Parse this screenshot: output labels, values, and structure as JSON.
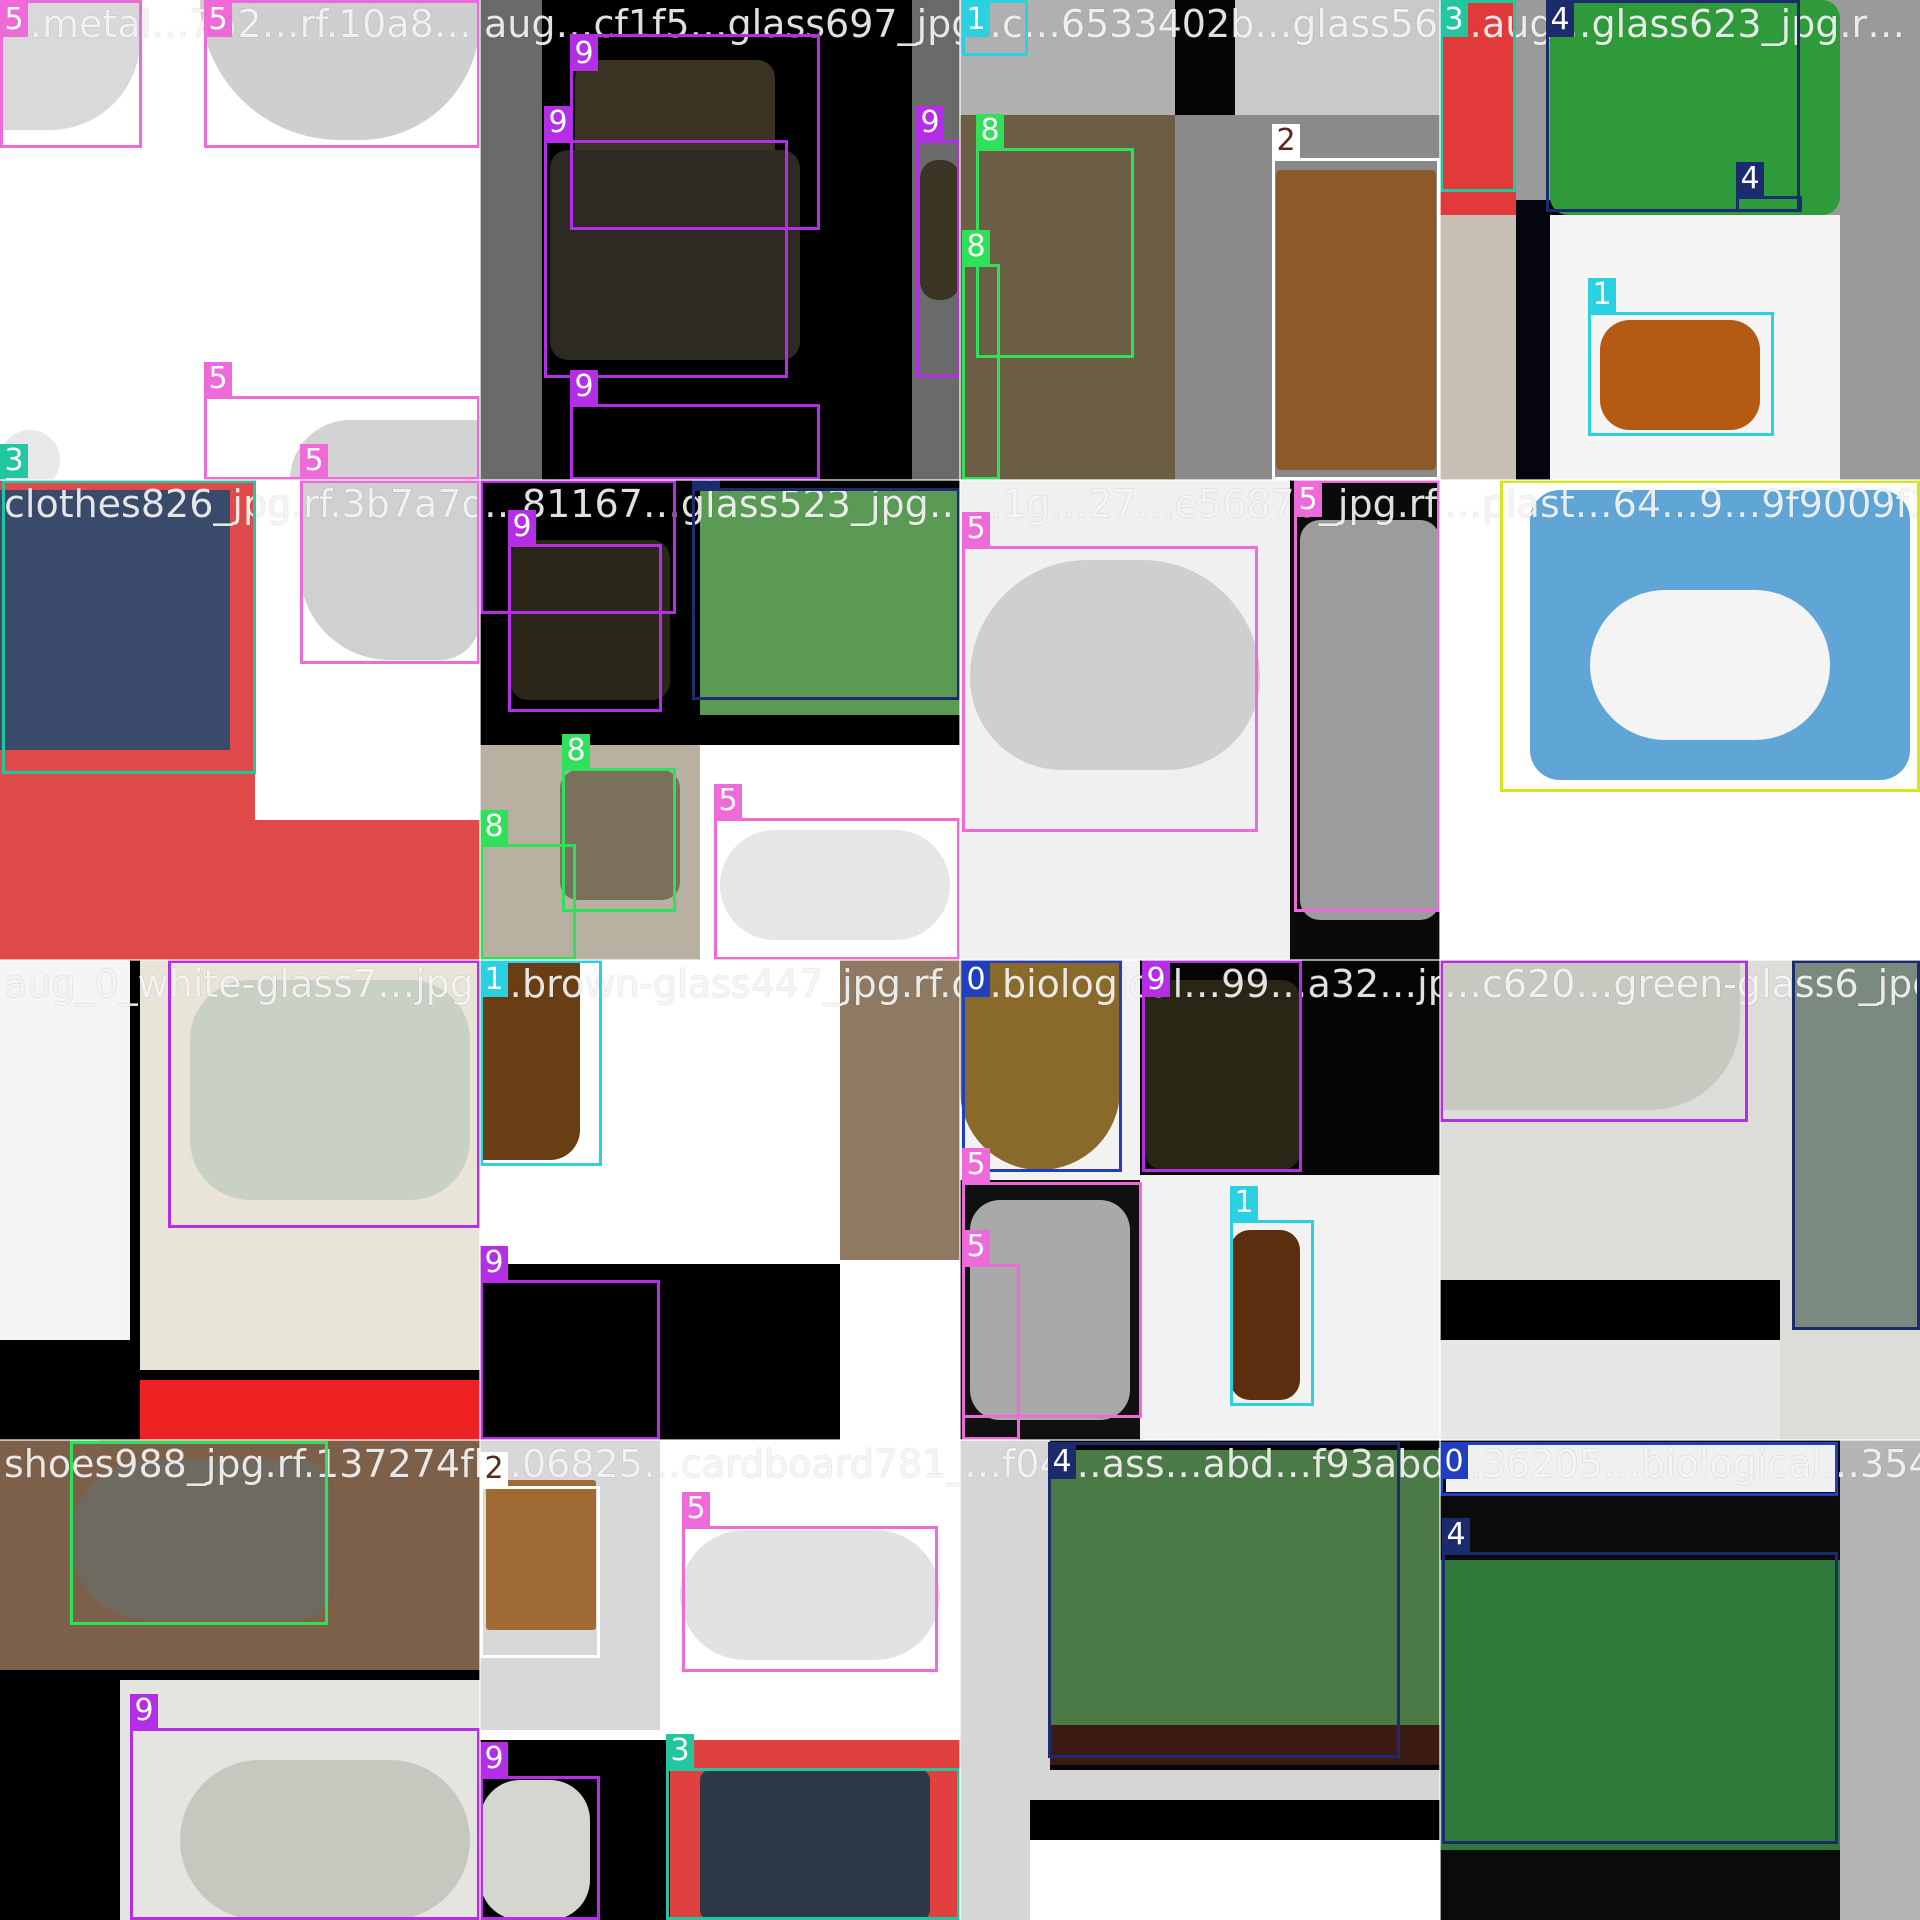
{
  "image": {
    "kind": "yolo-training-batch-mosaic",
    "grid": "4x4"
  },
  "class_colors": {
    "0": "#1f3fbf",
    "1": "#2bd1e0",
    "2": "#5a2a1e",
    "3": "#22c7a0",
    "4": "#1c2a6e",
    "5": "#ee6ad8",
    "7": "#d5e61e",
    "8": "#2fe05a",
    "9": "#b32ee6"
  },
  "tiles": [
    {
      "title": "…metal…752…rf.10a8…",
      "boxes": [
        {
          "cls": "5"
        },
        {
          "cls": "5"
        },
        {
          "cls": "5"
        },
        {
          "cls": "5"
        },
        {
          "cls": "3"
        }
      ]
    },
    {
      "title": "aug…cf1f5…glass697_jpg.rf…",
      "boxes": [
        {
          "cls": "9"
        },
        {
          "cls": "9"
        },
        {
          "cls": "9"
        },
        {
          "cls": "9"
        }
      ]
    },
    {
      "title": "…c…6533402b…glass567_jpg…",
      "boxes": [
        {
          "cls": "1"
        },
        {
          "cls": "8"
        },
        {
          "cls": "8"
        },
        {
          "cls": "2"
        }
      ]
    },
    {
      "title": "…aug…glass623_jpg.r…",
      "boxes": [
        {
          "cls": "3"
        },
        {
          "cls": "4"
        },
        {
          "cls": "4"
        },
        {
          "cls": "1"
        }
      ]
    },
    {
      "title": "clothes826_jpg.rf.3b7a7d10…",
      "boxes": [
        {
          "cls": "3"
        },
        {
          "cls": "5"
        }
      ]
    },
    {
      "title": "…81167…glass523_jpg…",
      "boxes": [
        {
          "cls": "9"
        },
        {
          "cls": "9"
        },
        {
          "cls": "4"
        },
        {
          "cls": "8"
        },
        {
          "cls": "8"
        },
        {
          "cls": "5"
        }
      ]
    },
    {
      "title": "…1g…27…e56870_jpg.rf.b065…",
      "boxes": [
        {
          "cls": "5"
        },
        {
          "cls": "5"
        }
      ]
    },
    {
      "title": "…plast…64…9…9f9009f14",
      "boxes": [
        {
          "cls": "7"
        }
      ]
    },
    {
      "title": "aug_0_white-glass7…jpg…",
      "boxes": [
        {
          "cls": "9"
        }
      ]
    },
    {
      "title": "…brown-glass447_jpg.rf.d3b04…",
      "boxes": [
        {
          "cls": "1"
        },
        {
          "cls": "9"
        }
      ]
    },
    {
      "title": "…biological…99…a32…jpg.rf.65b51ff2…",
      "boxes": [
        {
          "cls": "0"
        },
        {
          "cls": "9"
        },
        {
          "cls": "5"
        },
        {
          "cls": "5"
        },
        {
          "cls": "1"
        }
      ]
    },
    {
      "title": "…c620…green-glass6_jpg.rf.8…",
      "boxes": [
        {
          "cls": "9"
        },
        {
          "cls": "4"
        }
      ]
    },
    {
      "title": "shoes988_jpg.rf.137274fb94…",
      "boxes": [
        {
          "cls": "8"
        },
        {
          "cls": "9"
        }
      ]
    },
    {
      "title": "…06825…cardboard781_jpg.rf.ef…",
      "boxes": [
        {
          "cls": "2"
        },
        {
          "cls": "5"
        },
        {
          "cls": "9"
        },
        {
          "cls": "3"
        }
      ]
    },
    {
      "title": "…f04…ass…abd…f93abd0431…",
      "boxes": [
        {
          "cls": "4"
        }
      ]
    },
    {
      "title": "…36205…biological…354_jpg.rf.e…",
      "boxes": [
        {
          "cls": "0"
        },
        {
          "cls": "4"
        }
      ]
    }
  ]
}
